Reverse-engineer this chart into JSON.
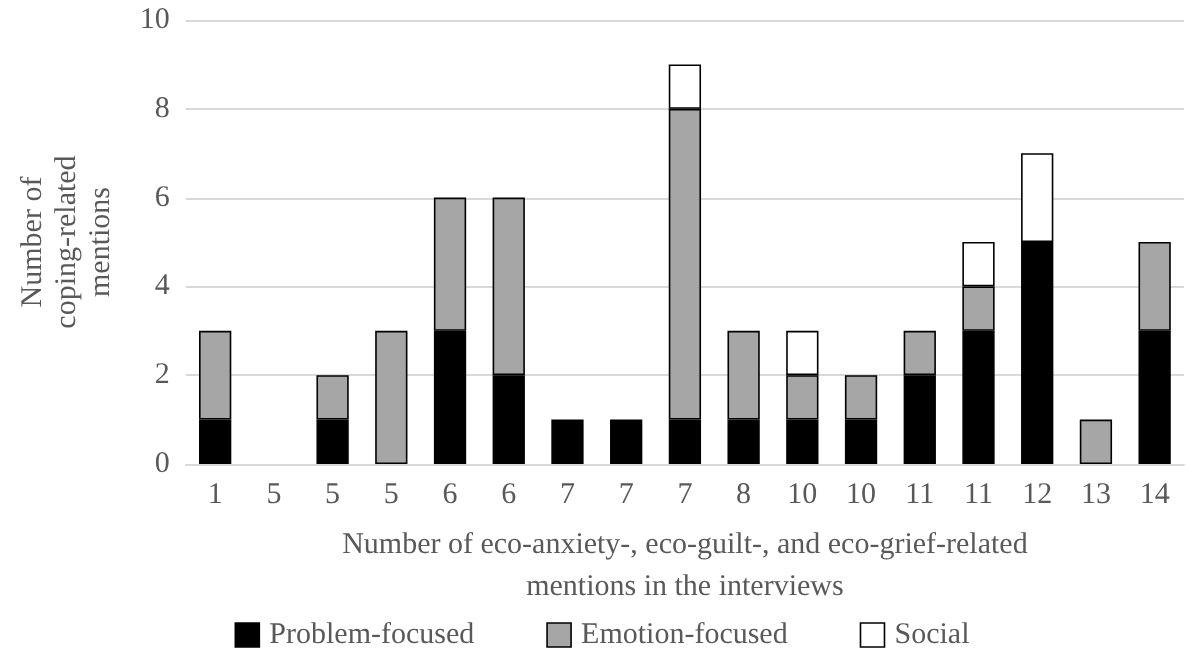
{
  "chart_data": {
    "type": "bar",
    "stacked": true,
    "xlabel": "Number of eco-anxiety-, eco-guilt-, and eco-grief-related mentions in the interviews",
    "ylabel": "Number of coping-related mentions",
    "categories": [
      "1",
      "5",
      "5",
      "5",
      "6",
      "6",
      "7",
      "7",
      "7",
      "8",
      "10",
      "10",
      "11",
      "11",
      "12",
      "13",
      "14"
    ],
    "series": [
      {
        "name": "Problem-focused",
        "color": "#000000",
        "values": [
          1,
          0,
          1,
          0,
          3,
          2,
          1,
          1,
          1,
          1,
          1,
          1,
          2,
          3,
          5,
          0,
          3
        ]
      },
      {
        "name": "Emotion-focused",
        "color": "#a6a6a6",
        "values": [
          2,
          0,
          1,
          3,
          3,
          4,
          0,
          0,
          7,
          2,
          1,
          1,
          1,
          1,
          0,
          1,
          2
        ]
      },
      {
        "name": "Social",
        "color": "#ffffff",
        "values": [
          0,
          0,
          0,
          0,
          0,
          0,
          0,
          0,
          1,
          0,
          1,
          0,
          0,
          1,
          2,
          0,
          0
        ]
      }
    ],
    "ylim": [
      0,
      10
    ],
    "yticks": [
      0,
      2,
      4,
      6,
      8,
      10
    ],
    "grid": "y",
    "legend": "bottom"
  }
}
